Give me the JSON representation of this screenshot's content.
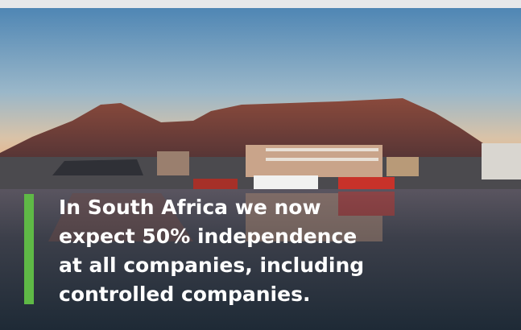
{
  "quote": {
    "lines": [
      "In South Africa we now",
      "expect 50% independence",
      "at all companies, including",
      "controlled companies."
    ]
  }
}
